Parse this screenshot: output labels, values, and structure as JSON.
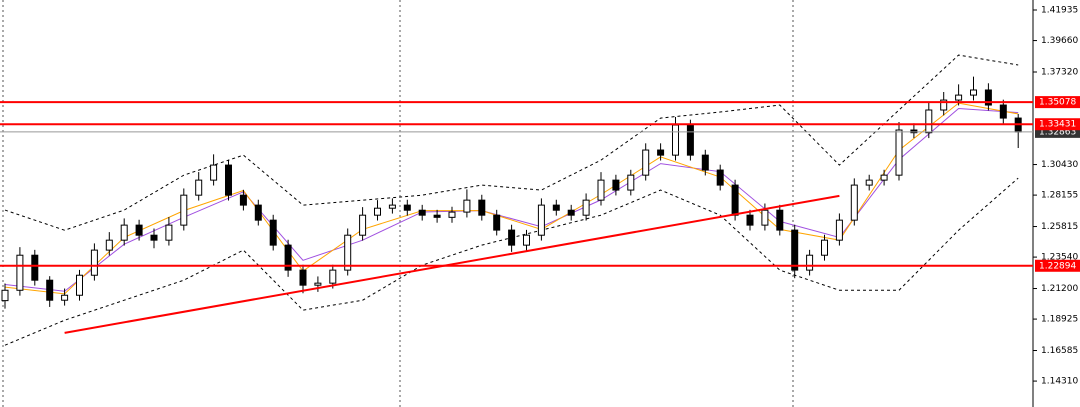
{
  "chart_data": {
    "type": "candlestick",
    "open": [
      1.203,
      1.2107,
      1.2368,
      1.2182,
      1.2033,
      1.207,
      1.2219,
      1.2406,
      1.248,
      1.2592,
      1.2517,
      1.248,
      1.2592,
      1.2815,
      1.2927,
      1.3039,
      1.2815,
      1.2741,
      1.2629,
      1.2443,
      1.2257,
      1.2145,
      1.216,
      1.2257,
      1.2517,
      1.2666,
      1.2718,
      1.2741,
      1.2703,
      1.2666,
      1.265,
      1.2689,
      1.2778,
      1.2666,
      1.2555,
      1.2443,
      1.2517,
      1.2741,
      1.2703,
      1.2666,
      1.2778,
      1.2927,
      1.2853,
      1.2964,
      1.3151,
      1.3113,
      1.3337,
      1.3113,
      1.3002,
      1.289,
      1.2666,
      1.2592,
      1.2703,
      1.2555,
      1.2257,
      1.2368,
      1.248,
      1.2629,
      1.289,
      1.2927,
      1.2964,
      1.33,
      1.328,
      1.3449,
      1.3523,
      1.356,
      1.3598,
      1.3486,
      1.3389
    ],
    "high": [
      1.2157,
      1.2428,
      1.2408,
      1.2212,
      1.212,
      1.2259,
      1.2456,
      1.254,
      1.2642,
      1.2632,
      1.2567,
      1.2652,
      1.2865,
      1.2987,
      1.3119,
      1.3079,
      1.2855,
      1.2781,
      1.2669,
      1.2483,
      1.2297,
      1.221,
      1.2297,
      1.2567,
      1.2726,
      1.2778,
      1.2791,
      1.2781,
      1.2743,
      1.2706,
      1.2729,
      1.2858,
      1.2818,
      1.2706,
      1.2595,
      1.2557,
      1.2791,
      1.2781,
      1.2743,
      1.2828,
      1.2987,
      1.2967,
      1.3004,
      1.3201,
      1.3201,
      1.3397,
      1.3377,
      1.3153,
      1.3042,
      1.293,
      1.2706,
      1.2753,
      1.2743,
      1.2595,
      1.2408,
      1.252,
      1.2679,
      1.294,
      1.2967,
      1.3004,
      1.336,
      1.335,
      1.3509,
      1.3583,
      1.364,
      1.3698,
      1.3648,
      1.3526,
      1.3419
    ],
    "low": [
      1.197,
      1.2067,
      1.2142,
      1.1983,
      1.1993,
      1.203,
      1.2179,
      1.2366,
      1.244,
      1.2477,
      1.242,
      1.244,
      1.2552,
      1.2775,
      1.2887,
      1.2775,
      1.2701,
      1.2589,
      1.2403,
      1.2207,
      1.2085,
      1.2095,
      1.212,
      1.2217,
      1.2477,
      1.2626,
      1.2678,
      1.2663,
      1.2626,
      1.261,
      1.261,
      1.2649,
      1.2626,
      1.2515,
      1.2393,
      1.2403,
      1.2477,
      1.2663,
      1.2626,
      1.2626,
      1.2738,
      1.2813,
      1.2813,
      1.2924,
      1.3073,
      1.3073,
      1.3073,
      1.2962,
      1.285,
      1.2626,
      1.2552,
      1.2552,
      1.2515,
      1.2197,
      1.2217,
      1.2328,
      1.244,
      1.2589,
      1.285,
      1.2887,
      1.2924,
      1.324,
      1.324,
      1.3409,
      1.3483,
      1.352,
      1.3446,
      1.3349,
      1.3166
    ],
    "close": [
      1.2107,
      1.2368,
      1.2182,
      1.2033,
      1.207,
      1.2219,
      1.2406,
      1.248,
      1.2592,
      1.2517,
      1.248,
      1.2592,
      1.2815,
      1.2927,
      1.3039,
      1.2815,
      1.2741,
      1.2629,
      1.2443,
      1.2257,
      1.2145,
      1.216,
      1.2257,
      1.2517,
      1.2666,
      1.2718,
      1.2741,
      1.2703,
      1.2666,
      1.265,
      1.2689,
      1.2778,
      1.2666,
      1.2555,
      1.2443,
      1.2517,
      1.2741,
      1.2703,
      1.2666,
      1.2778,
      1.2927,
      1.2853,
      1.2964,
      1.3151,
      1.3113,
      1.3337,
      1.3113,
      1.3002,
      1.289,
      1.2666,
      1.2592,
      1.2703,
      1.2555,
      1.2257,
      1.2368,
      1.248,
      1.2629,
      1.289,
      1.2927,
      1.2964,
      1.33,
      1.328,
      1.3449,
      1.3523,
      1.356,
      1.3598,
      1.3486,
      1.3389,
      1.3286
    ],
    "overlays": [
      {
        "color": "#000000",
        "dashed": true,
        "x": [
          0,
          4,
          8,
          12,
          16,
          20,
          24,
          28,
          32,
          36,
          40,
          44,
          48,
          52,
          56,
          60,
          64,
          68
        ],
        "values": [
          1.2704,
          1.2554,
          1.2704,
          1.2964,
          1.3113,
          1.2741,
          1.2778,
          1.2815,
          1.289,
          1.2853,
          1.3076,
          1.3389,
          1.3434,
          1.3486,
          1.3039,
          1.3449,
          1.3858,
          1.3784
        ]
      },
      {
        "color": "#000000",
        "dashed": true,
        "x": [
          0,
          4,
          8,
          12,
          16,
          20,
          24,
          28,
          32,
          36,
          40,
          44,
          48,
          52,
          56,
          60,
          64,
          68
        ],
        "values": [
          1.1698,
          1.1884,
          1.2033,
          1.2182,
          1.2406,
          1.1959,
          1.2033,
          1.2294,
          1.2443,
          1.2554,
          1.2666,
          1.2853,
          1.2666,
          1.2257,
          1.2107,
          1.2107,
          1.2554,
          1.2942
        ]
      },
      {
        "color": "#a050e0",
        "dashed": false,
        "x": [
          0,
          4,
          8,
          12,
          16,
          20,
          24,
          28,
          32,
          36,
          40,
          44,
          48,
          52,
          56,
          60,
          64,
          68
        ],
        "values": [
          1.215,
          1.21,
          1.245,
          1.265,
          1.284,
          1.233,
          1.248,
          1.269,
          1.27,
          1.258,
          1.278,
          1.305,
          1.299,
          1.262,
          1.25,
          1.308,
          1.346,
          1.343
        ]
      },
      {
        "color": "#ffa500",
        "dashed": false,
        "x": [
          0,
          4,
          8,
          12,
          16,
          20,
          24,
          28,
          32,
          36,
          40,
          44,
          48,
          52,
          56,
          60,
          64,
          68
        ],
        "values": [
          1.213,
          1.208,
          1.25,
          1.27,
          1.285,
          1.225,
          1.256,
          1.27,
          1.27,
          1.256,
          1.282,
          1.31,
          1.295,
          1.256,
          1.248,
          1.315,
          1.35,
          1.342
        ]
      }
    ],
    "trendline": {
      "x": [
        4,
        56
      ],
      "y": [
        1.179,
        1.281
      ],
      "color": "#ff0000"
    },
    "hlines": [
      1.35078,
      1.33431,
      1.22894
    ],
    "hline_color": "#ff0000",
    "last_price": 1.32863,
    "ylim": [
      1.1238,
      1.4268
    ],
    "yticks": [
      1.41935,
      {
        "value": 1.3966,
        "label": "1.39660"
      },
      {
        "value": 1.3732,
        "label": "1.37320"
      },
      {
        "value": 1.3043,
        "label": "1.30430"
      },
      1.28155,
      1.25815,
      {
        "value": 1.2354,
        "label": "1.23540"
      },
      {
        "value": 1.212,
        "label": "1.21200"
      },
      1.18925,
      1.16585,
      {
        "value": 1.1431,
        "label": "1.14310"
      }
    ]
  }
}
